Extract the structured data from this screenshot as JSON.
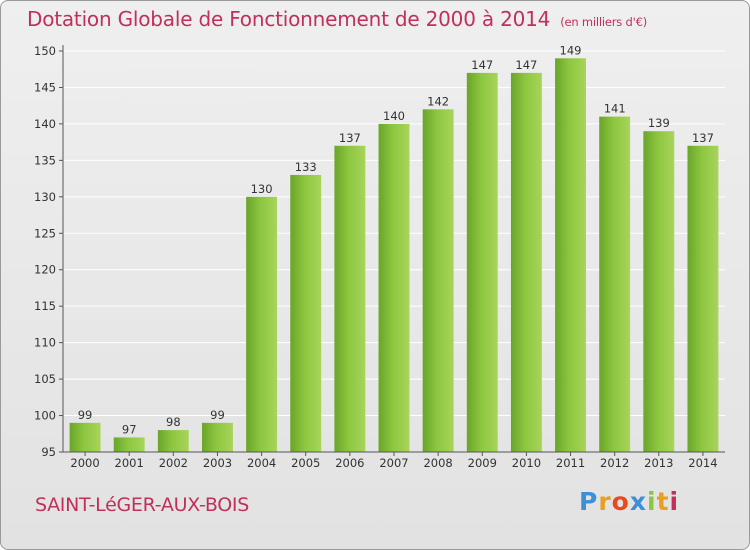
{
  "chart_data": {
    "type": "bar",
    "title": "Dotation Globale de Fonctionnement de 2000 à 2014",
    "subtitle": "(en milliers d'€)",
    "categories": [
      "2000",
      "2001",
      "2002",
      "2003",
      "2004",
      "2005",
      "2006",
      "2007",
      "2008",
      "2009",
      "2010",
      "2011",
      "2012",
      "2013",
      "2014"
    ],
    "values": [
      99,
      97,
      98,
      99,
      130,
      133,
      137,
      140,
      142,
      147,
      147,
      149,
      141,
      139,
      137
    ],
    "ylim": [
      95,
      150
    ],
    "yticks": [
      95,
      100,
      105,
      110,
      115,
      120,
      125,
      130,
      135,
      140,
      145,
      150
    ],
    "grid": true,
    "bar_color": "#8cc63f"
  },
  "footer": {
    "city": "SAINT-LéGER-AUX-BOIS",
    "logo_letters": [
      "P",
      "r",
      "o",
      "x",
      "i",
      "t",
      "i"
    ],
    "logo_colors": [
      "#3d8fd6",
      "#e8a020",
      "#e84a20",
      "#3d8fd6",
      "#8cc63f",
      "#e8a020",
      "#c0305a"
    ]
  }
}
